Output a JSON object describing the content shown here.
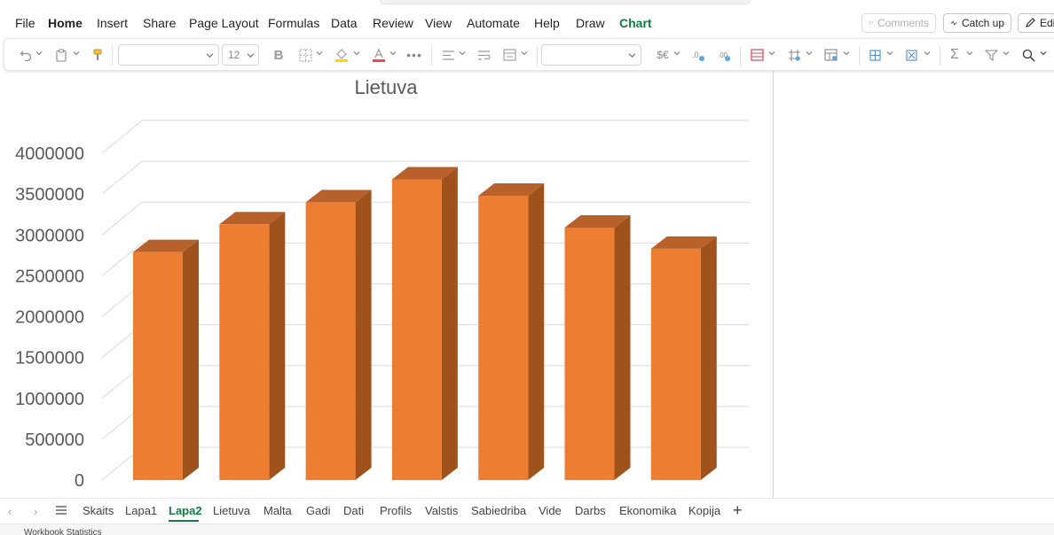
{
  "menu": {
    "tabs": [
      {
        "label": "File"
      },
      {
        "label": "Home"
      },
      {
        "label": "Insert"
      },
      {
        "label": "Share"
      },
      {
        "label": "Page Layout"
      },
      {
        "label": "Formulas"
      },
      {
        "label": "Data"
      },
      {
        "label": "Review"
      },
      {
        "label": "View"
      },
      {
        "label": "Automate"
      },
      {
        "label": "Help"
      },
      {
        "label": "Draw"
      },
      {
        "label": "Chart"
      }
    ],
    "active_tab": "Home",
    "comments_label": "Comments",
    "catchup_label": "Catch up",
    "edit_label": "Edi"
  },
  "ribbon": {
    "font_name": "",
    "font_size": "12",
    "number_format": "",
    "currency_symbol": "$€"
  },
  "chart_data": {
    "type": "bar",
    "style": "3d-column",
    "title": "Lietuva",
    "categories": [
      "",
      "",
      "",
      "",
      "",
      "",
      ""
    ],
    "values": [
      2790000,
      3130000,
      3400000,
      3680000,
      3480000,
      3090000,
      2830000
    ],
    "ylim": [
      0,
      4000000
    ],
    "yticks": [
      "0",
      "500000",
      "1000000",
      "1500000",
      "2000000",
      "2500000",
      "3000000",
      "3500000",
      "4000000"
    ],
    "grid": true,
    "legend": "none",
    "colors": {
      "front": "#ed7d31",
      "side": "#a0521d",
      "top": "#b8612a"
    }
  },
  "sheets": {
    "tabs": [
      "Skaits",
      "Lapa1",
      "Lapa2",
      "Lietuva",
      "Malta",
      "Gadi",
      "Dati",
      "Profils",
      "Valstis",
      "Sabiedriba",
      "Vide",
      "Darbs",
      "Ekonomika",
      "Kopija"
    ],
    "active": "Lapa2"
  },
  "status": {
    "text": "Workbook Statistics"
  }
}
